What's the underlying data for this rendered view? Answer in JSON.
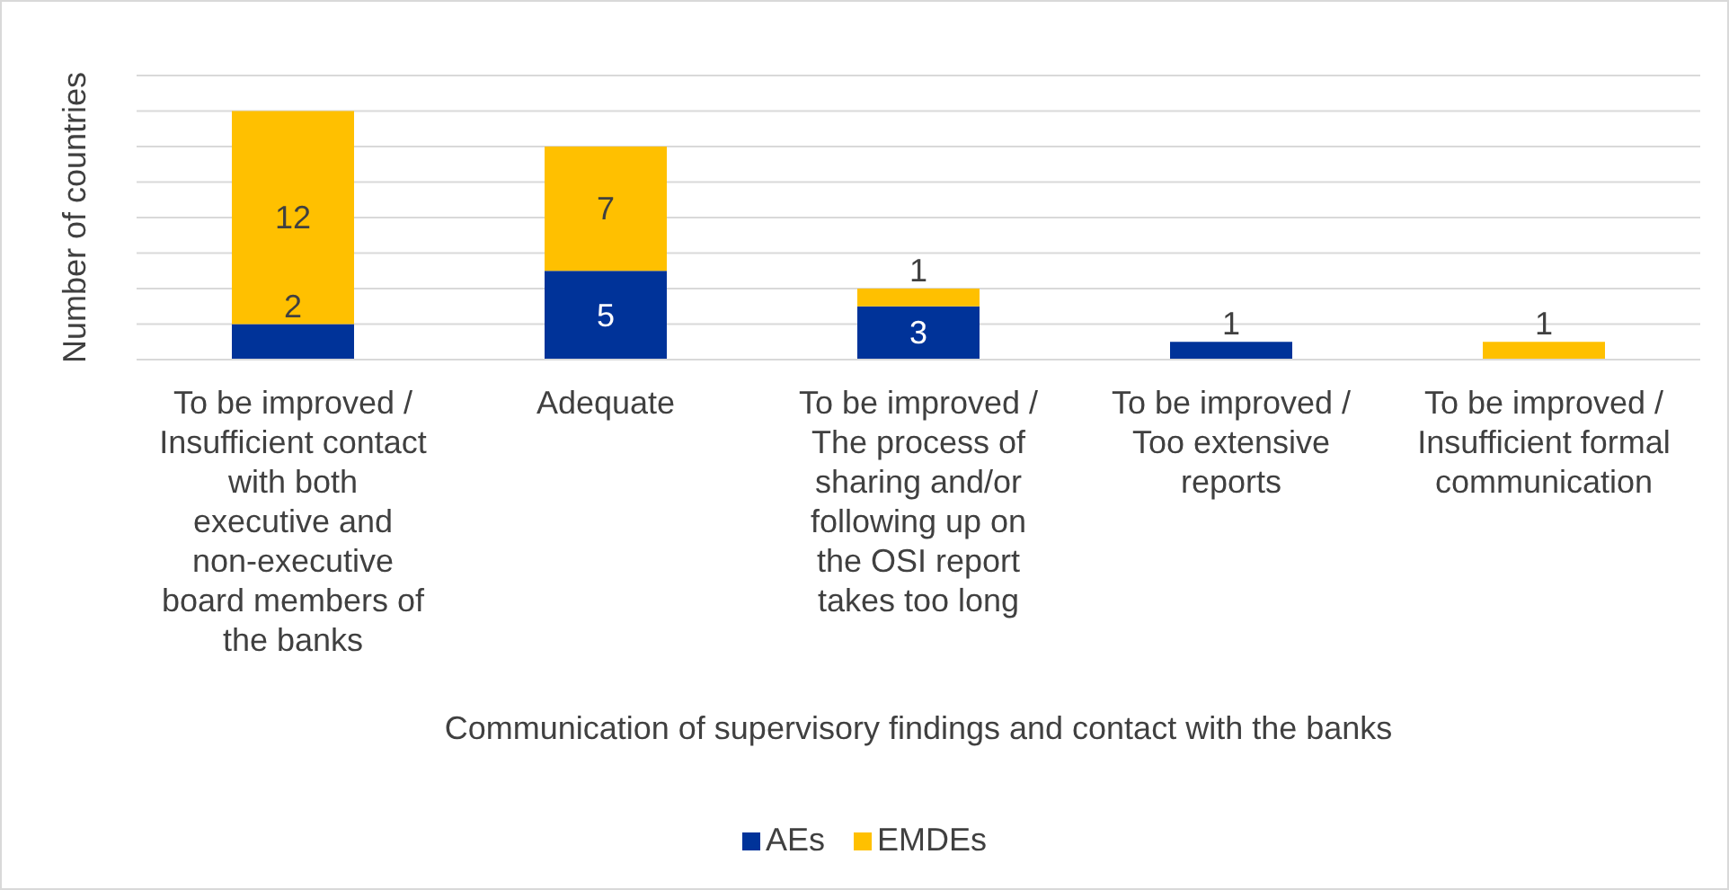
{
  "chart_data": {
    "type": "bar",
    "stacked": true,
    "xlabel": "Communication of supervisory findings and contact with the banks",
    "ylabel": "Number of countries",
    "categories": [
      "To be improved / Insufficient contact with both executive and non-executive board members of the banks",
      "Adequate",
      "To be improved / The process of sharing and/or following up on the OSI report takes too long",
      "To be improved / Too extensive reports",
      "To be improved / Insufficient formal communication"
    ],
    "series": [
      {
        "name": "AEs",
        "color": "#003399",
        "values": [
          2,
          5,
          3,
          1,
          null
        ]
      },
      {
        "name": "EMDEs",
        "color": "#ffc000",
        "values": [
          12,
          7,
          1,
          null,
          1
        ]
      }
    ],
    "ylim": [
      0,
      16
    ],
    "yticks": [
      {
        "value": 0,
        "label": null
      },
      {
        "value": 2,
        "label": null
      },
      {
        "value": 4,
        "label": null
      },
      {
        "value": 6,
        "label": null
      },
      {
        "value": 8,
        "label": null
      },
      {
        "value": 10,
        "label": null
      },
      {
        "value": 12,
        "label": null
      },
      {
        "value": 14,
        "label": null
      },
      {
        "value": 16,
        "label": null
      }
    ],
    "tick_labels": "x",
    "grid": "y",
    "legend": "bottom",
    "data_labels": true
  }
}
